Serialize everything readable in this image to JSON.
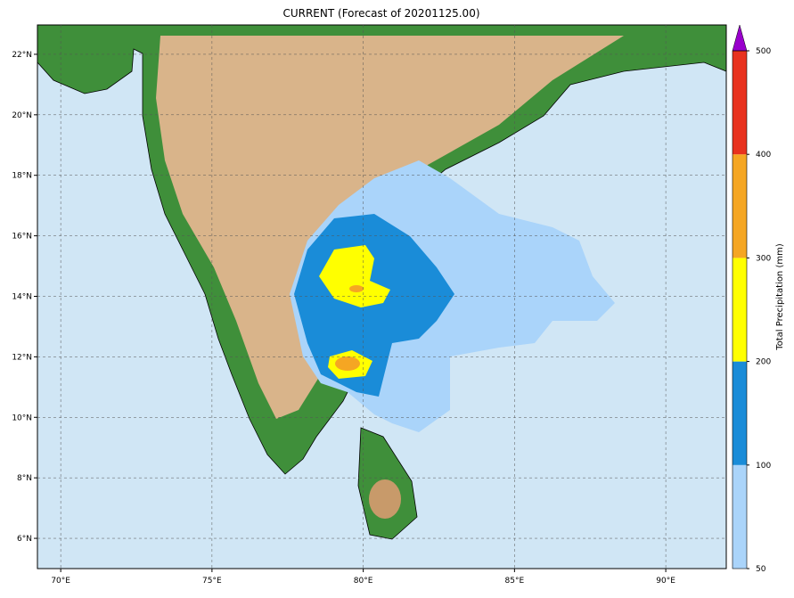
{
  "title": "CURRENT (Forecast of 20201125.00)",
  "map": {
    "xlim": [
      69.23,
      92.0
    ],
    "ylim": [
      5.0,
      22.97
    ],
    "xticks": [
      {
        "value": 70,
        "label": "70°E"
      },
      {
        "value": 75,
        "label": "75°E"
      },
      {
        "value": 80,
        "label": "80°E"
      },
      {
        "value": 85,
        "label": "85°E"
      },
      {
        "value": 90,
        "label": "90°E"
      }
    ],
    "yticks": [
      {
        "value": 6,
        "label": "6°N"
      },
      {
        "value": 8,
        "label": "8°N"
      },
      {
        "value": 10,
        "label": "10°N"
      },
      {
        "value": 12,
        "label": "12°N"
      },
      {
        "value": 14,
        "label": "14°N"
      },
      {
        "value": 16,
        "label": "16°N"
      },
      {
        "value": 18,
        "label": "18°N"
      },
      {
        "value": 20,
        "label": "20°N"
      },
      {
        "value": 22,
        "label": "22°N"
      }
    ],
    "grid": true
  },
  "colorbar": {
    "label": "Total Precipitation (mm)",
    "levels": [
      50,
      100,
      200,
      300,
      400,
      500
    ],
    "colors": [
      "#aad4fa",
      "#1a8cd8",
      "#ffff00",
      "#f5a623",
      "#e8321e"
    ],
    "extend_color": "#9900cc"
  }
}
